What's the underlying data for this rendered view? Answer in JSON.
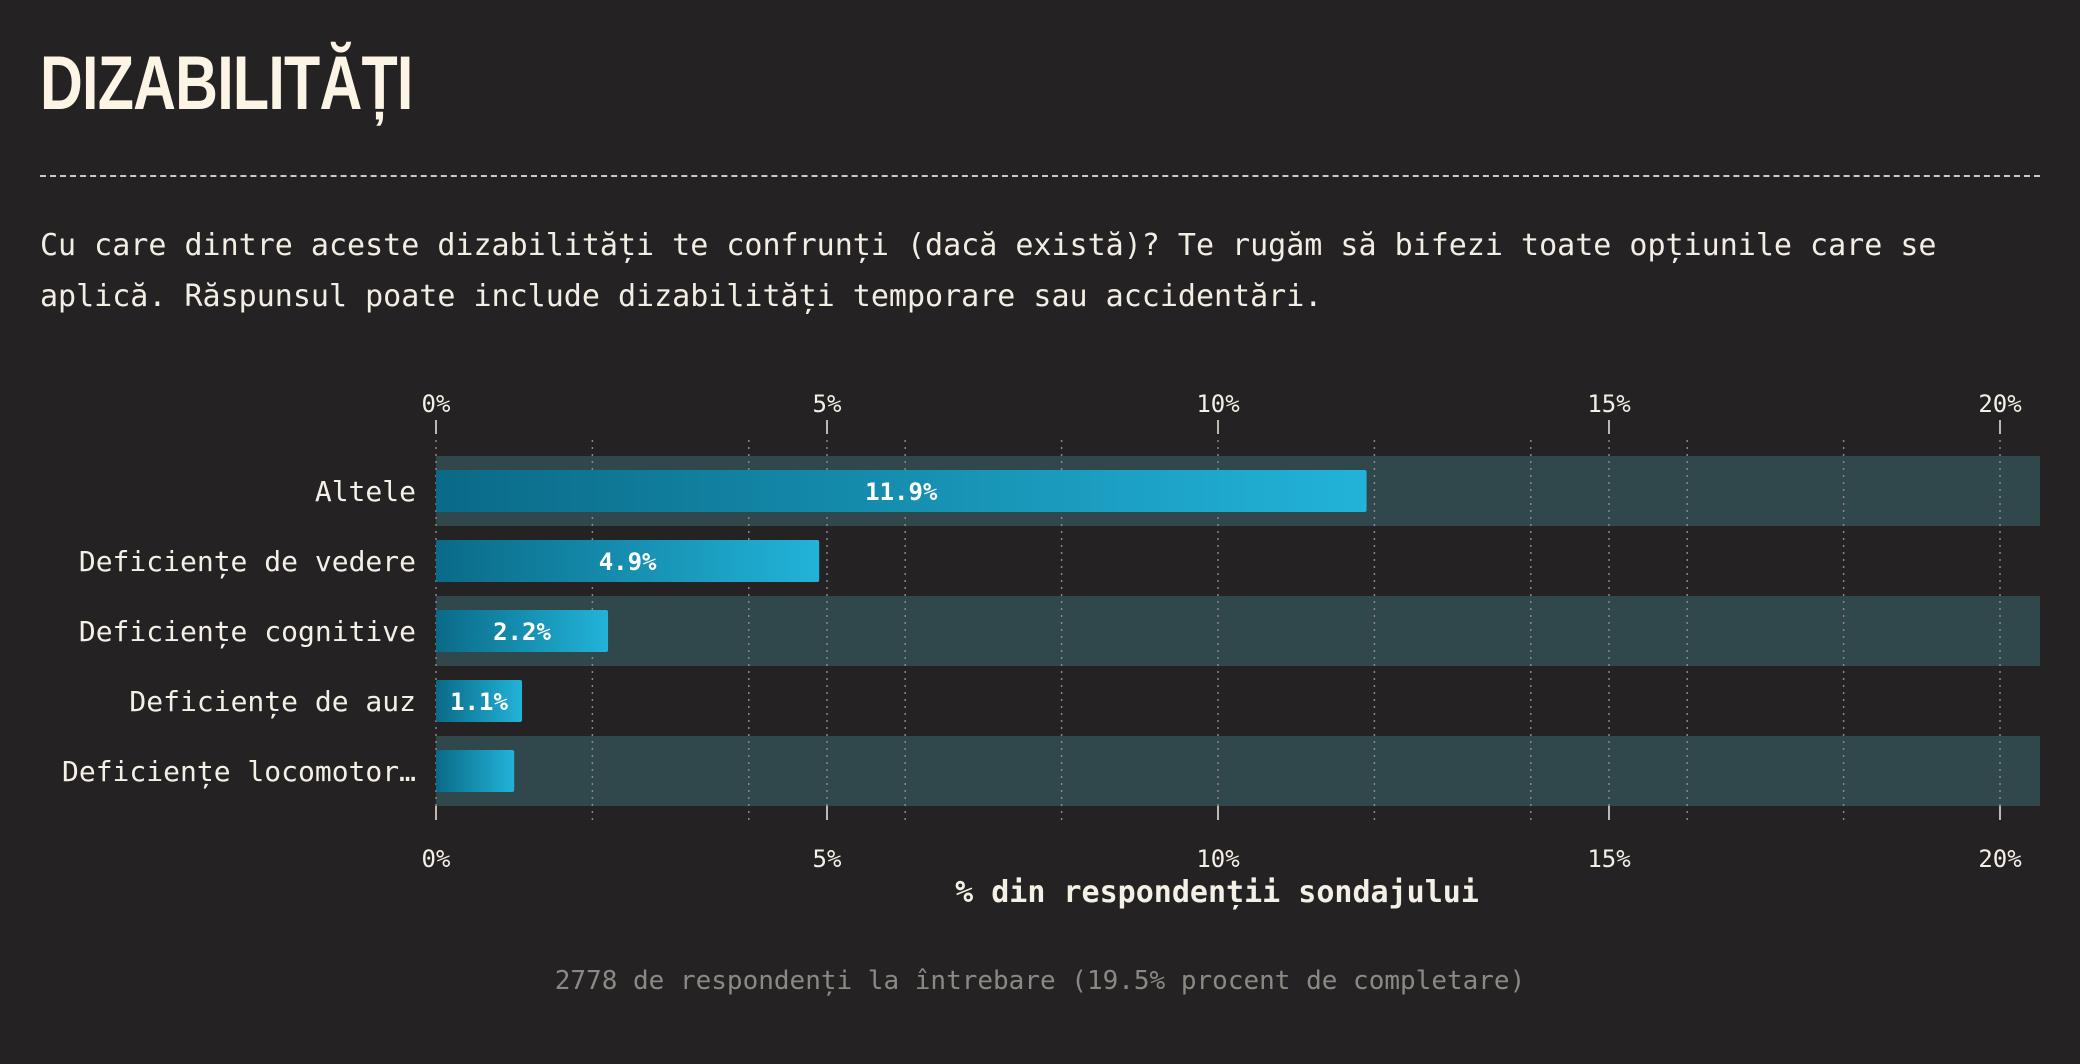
{
  "page": {
    "title": "DIZABILITĂȚI",
    "question": "Cu care dintre aceste dizabilități te confrunți (dacă există)? Te rugăm să bifezi toate opțiunile care se aplică. Răspunsul poate include dizabilități temporare sau accidentări.",
    "footnote": "2778 de respondenți la întrebare (19.5% procent de completare)"
  },
  "colors": {
    "background": "#252223",
    "band": "#30474c",
    "bar_start": "#0a6a87",
    "bar_end": "#22b3d9",
    "text": "#f5f0e6",
    "muted": "#8c8884"
  },
  "chart_data": {
    "type": "bar",
    "orientation": "horizontal",
    "categories": [
      "Altele",
      "Deficiențe de vedere",
      "Deficiențe cognitive",
      "Deficiențe de auz",
      "Deficiențe locomotor…"
    ],
    "values": [
      11.9,
      4.9,
      2.2,
      1.1,
      1.0
    ],
    "data_labels": [
      "11.9%",
      "4.9%",
      "2.2%",
      "1.1%",
      ""
    ],
    "xlabel": "% din respondenții sondajului",
    "ylabel": "",
    "xlim": [
      0,
      20.5
    ],
    "x_ticks": [
      0,
      5,
      10,
      15,
      20
    ],
    "x_tick_labels": [
      "0%",
      "5%",
      "10%",
      "15%",
      "20%"
    ],
    "x_minor_gridlines": [
      2,
      4,
      6,
      8,
      12,
      14,
      16,
      18
    ],
    "axis_positions": [
      "top",
      "bottom"
    ],
    "alternating_row_bands": true,
    "grid": true,
    "legend": "none"
  }
}
